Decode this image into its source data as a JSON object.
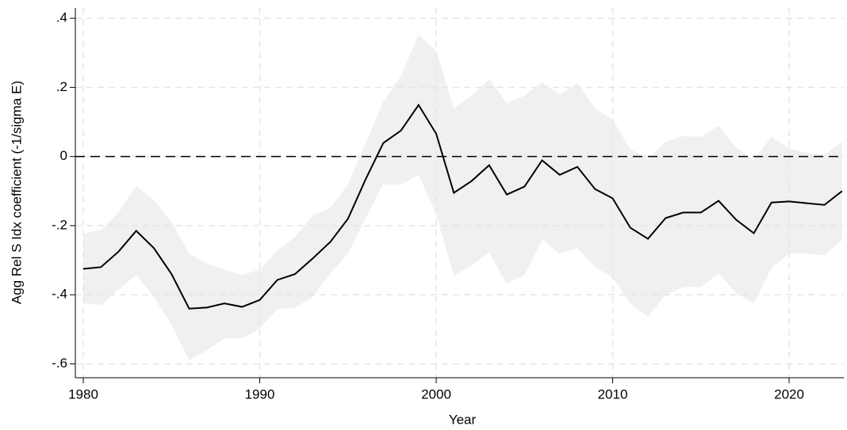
{
  "chart_data": {
    "type": "line",
    "x_label": "Year",
    "y_label": "Agg Rel S Idx coefficient (-1/sigma E)",
    "x": [
      1980,
      1981,
      1982,
      1983,
      1984,
      1985,
      1986,
      1987,
      1988,
      1989,
      1990,
      1991,
      1992,
      1993,
      1994,
      1995,
      1996,
      1997,
      1998,
      1999,
      2000,
      2001,
      2002,
      2003,
      2004,
      2005,
      2006,
      2007,
      2008,
      2009,
      2010,
      2011,
      2012,
      2013,
      2014,
      2015,
      2016,
      2017,
      2018,
      2019,
      2020,
      2021,
      2022,
      2023
    ],
    "values": [
      -0.325,
      -0.32,
      -0.275,
      -0.215,
      -0.265,
      -0.34,
      -0.44,
      -0.437,
      -0.425,
      -0.435,
      -0.415,
      -0.357,
      -0.34,
      -0.295,
      -0.247,
      -0.18,
      -0.066,
      0.039,
      0.075,
      0.149,
      0.066,
      -0.105,
      -0.071,
      -0.025,
      -0.11,
      -0.087,
      -0.011,
      -0.053,
      -0.03,
      -0.094,
      -0.121,
      -0.206,
      -0.238,
      -0.178,
      -0.162,
      -0.162,
      -0.128,
      -0.183,
      -0.222,
      -0.133,
      -0.13,
      -0.135,
      -0.14,
      -0.1
    ],
    "upper": [
      -0.224,
      -0.213,
      -0.162,
      -0.085,
      -0.126,
      -0.19,
      -0.281,
      -0.31,
      -0.327,
      -0.343,
      -0.327,
      -0.272,
      -0.233,
      -0.171,
      -0.149,
      -0.08,
      0.039,
      0.158,
      0.233,
      0.352,
      0.306,
      0.139,
      0.176,
      0.224,
      0.155,
      0.176,
      0.215,
      0.178,
      0.213,
      0.139,
      0.107,
      0.021,
      -0.007,
      0.043,
      0.059,
      0.057,
      0.089,
      0.027,
      -0.011,
      0.057,
      0.023,
      0.011,
      0.005,
      0.043
    ],
    "lower": [
      -0.425,
      -0.43,
      -0.384,
      -0.343,
      -0.407,
      -0.487,
      -0.59,
      -0.56,
      -0.526,
      -0.526,
      -0.498,
      -0.441,
      -0.437,
      -0.407,
      -0.338,
      -0.281,
      -0.178,
      -0.08,
      -0.082,
      -0.053,
      -0.167,
      -0.345,
      -0.315,
      -0.277,
      -0.368,
      -0.343,
      -0.24,
      -0.281,
      -0.265,
      -0.32,
      -0.35,
      -0.425,
      -0.464,
      -0.4,
      -0.377,
      -0.377,
      -0.338,
      -0.395,
      -0.425,
      -0.322,
      -0.281,
      -0.281,
      -0.286,
      -0.242
    ],
    "color": "#000000",
    "band_color": "#ebebeb",
    "reference_line": 0,
    "xlim": [
      1979.55,
      2023.1
    ],
    "ylim": [
      -0.64,
      0.43
    ],
    "xticks": [
      1980,
      1990,
      2000,
      2010,
      2020
    ],
    "yticks": [
      {
        "value": 0.4,
        "label": ".4"
      },
      {
        "value": 0.2,
        "label": ".2"
      },
      0,
      {
        "value": -0.2,
        "label": "-.2"
      },
      {
        "value": -0.4,
        "label": "-.4"
      },
      {
        "value": -0.6,
        "label": "-.6"
      }
    ],
    "grid": true
  }
}
